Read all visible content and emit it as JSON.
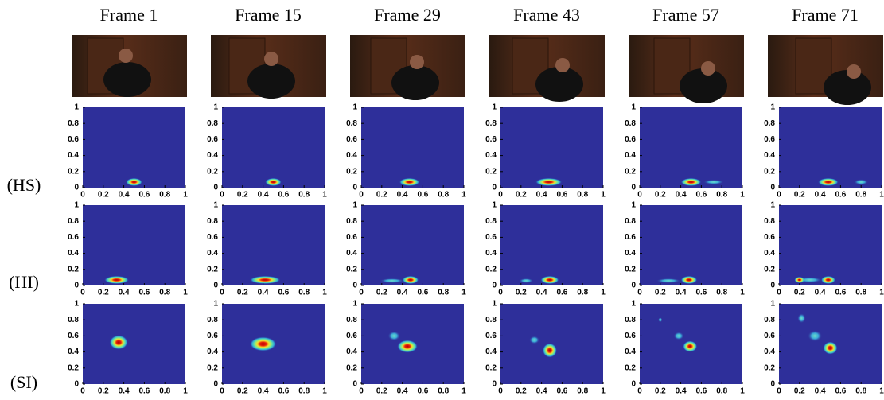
{
  "columns": [
    {
      "title": "Frame 1"
    },
    {
      "title": "Frame 15"
    },
    {
      "title": "Frame 29"
    },
    {
      "title": "Frame 43"
    },
    {
      "title": "Frame 57"
    },
    {
      "title": "Frame 71"
    }
  ],
  "rows": [
    {
      "label": "(HS)"
    },
    {
      "label": "(HI)"
    },
    {
      "label": "(SI)"
    }
  ],
  "axes": {
    "xticks": [
      0,
      0.2,
      0.4,
      0.6,
      0.8,
      1
    ],
    "yticks": [
      0,
      0.2,
      0.4,
      0.6,
      0.8,
      1
    ]
  }
}
